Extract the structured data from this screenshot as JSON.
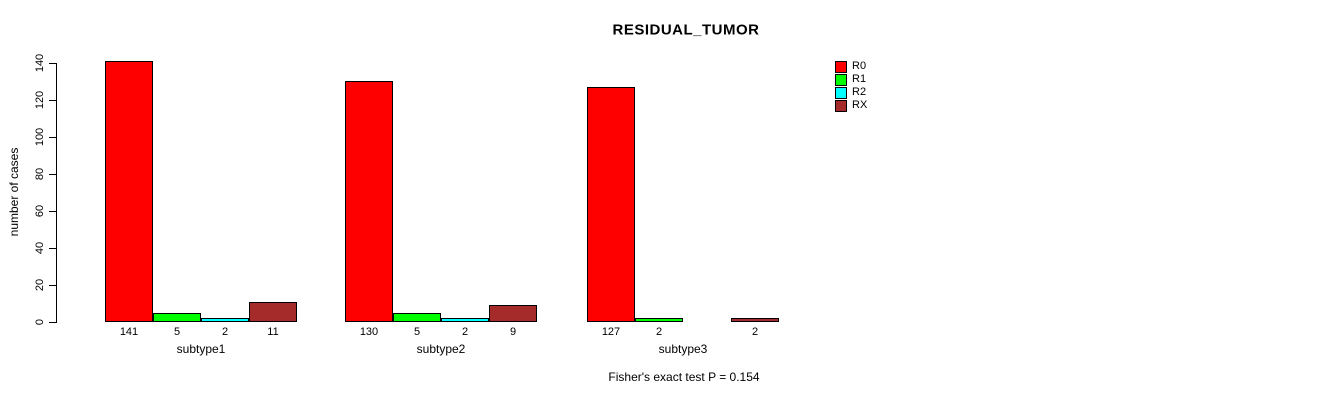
{
  "chart_data": {
    "type": "bar",
    "title": "RESIDUAL_TUMOR",
    "xlabel": "",
    "ylabel": "number of cases",
    "ylim": [
      0,
      140
    ],
    "yticks": [
      0,
      20,
      40,
      60,
      80,
      100,
      120,
      140
    ],
    "grid": false,
    "legend_position": "right",
    "bar_value_labels_shown": true,
    "categories": [
      "subtype1",
      "subtype2",
      "subtype3"
    ],
    "series": [
      {
        "name": "R0",
        "color": "#ff0000",
        "values": [
          141,
          130,
          127
        ]
      },
      {
        "name": "R1",
        "color": "#00ff00",
        "values": [
          5,
          5,
          2
        ]
      },
      {
        "name": "R2",
        "color": "#00ffff",
        "values": [
          2,
          2,
          0
        ]
      },
      {
        "name": "RX",
        "color": "#a52a2a",
        "values": [
          11,
          9,
          2
        ]
      }
    ],
    "annotation": "Fisher's exact test P = 0.154"
  }
}
